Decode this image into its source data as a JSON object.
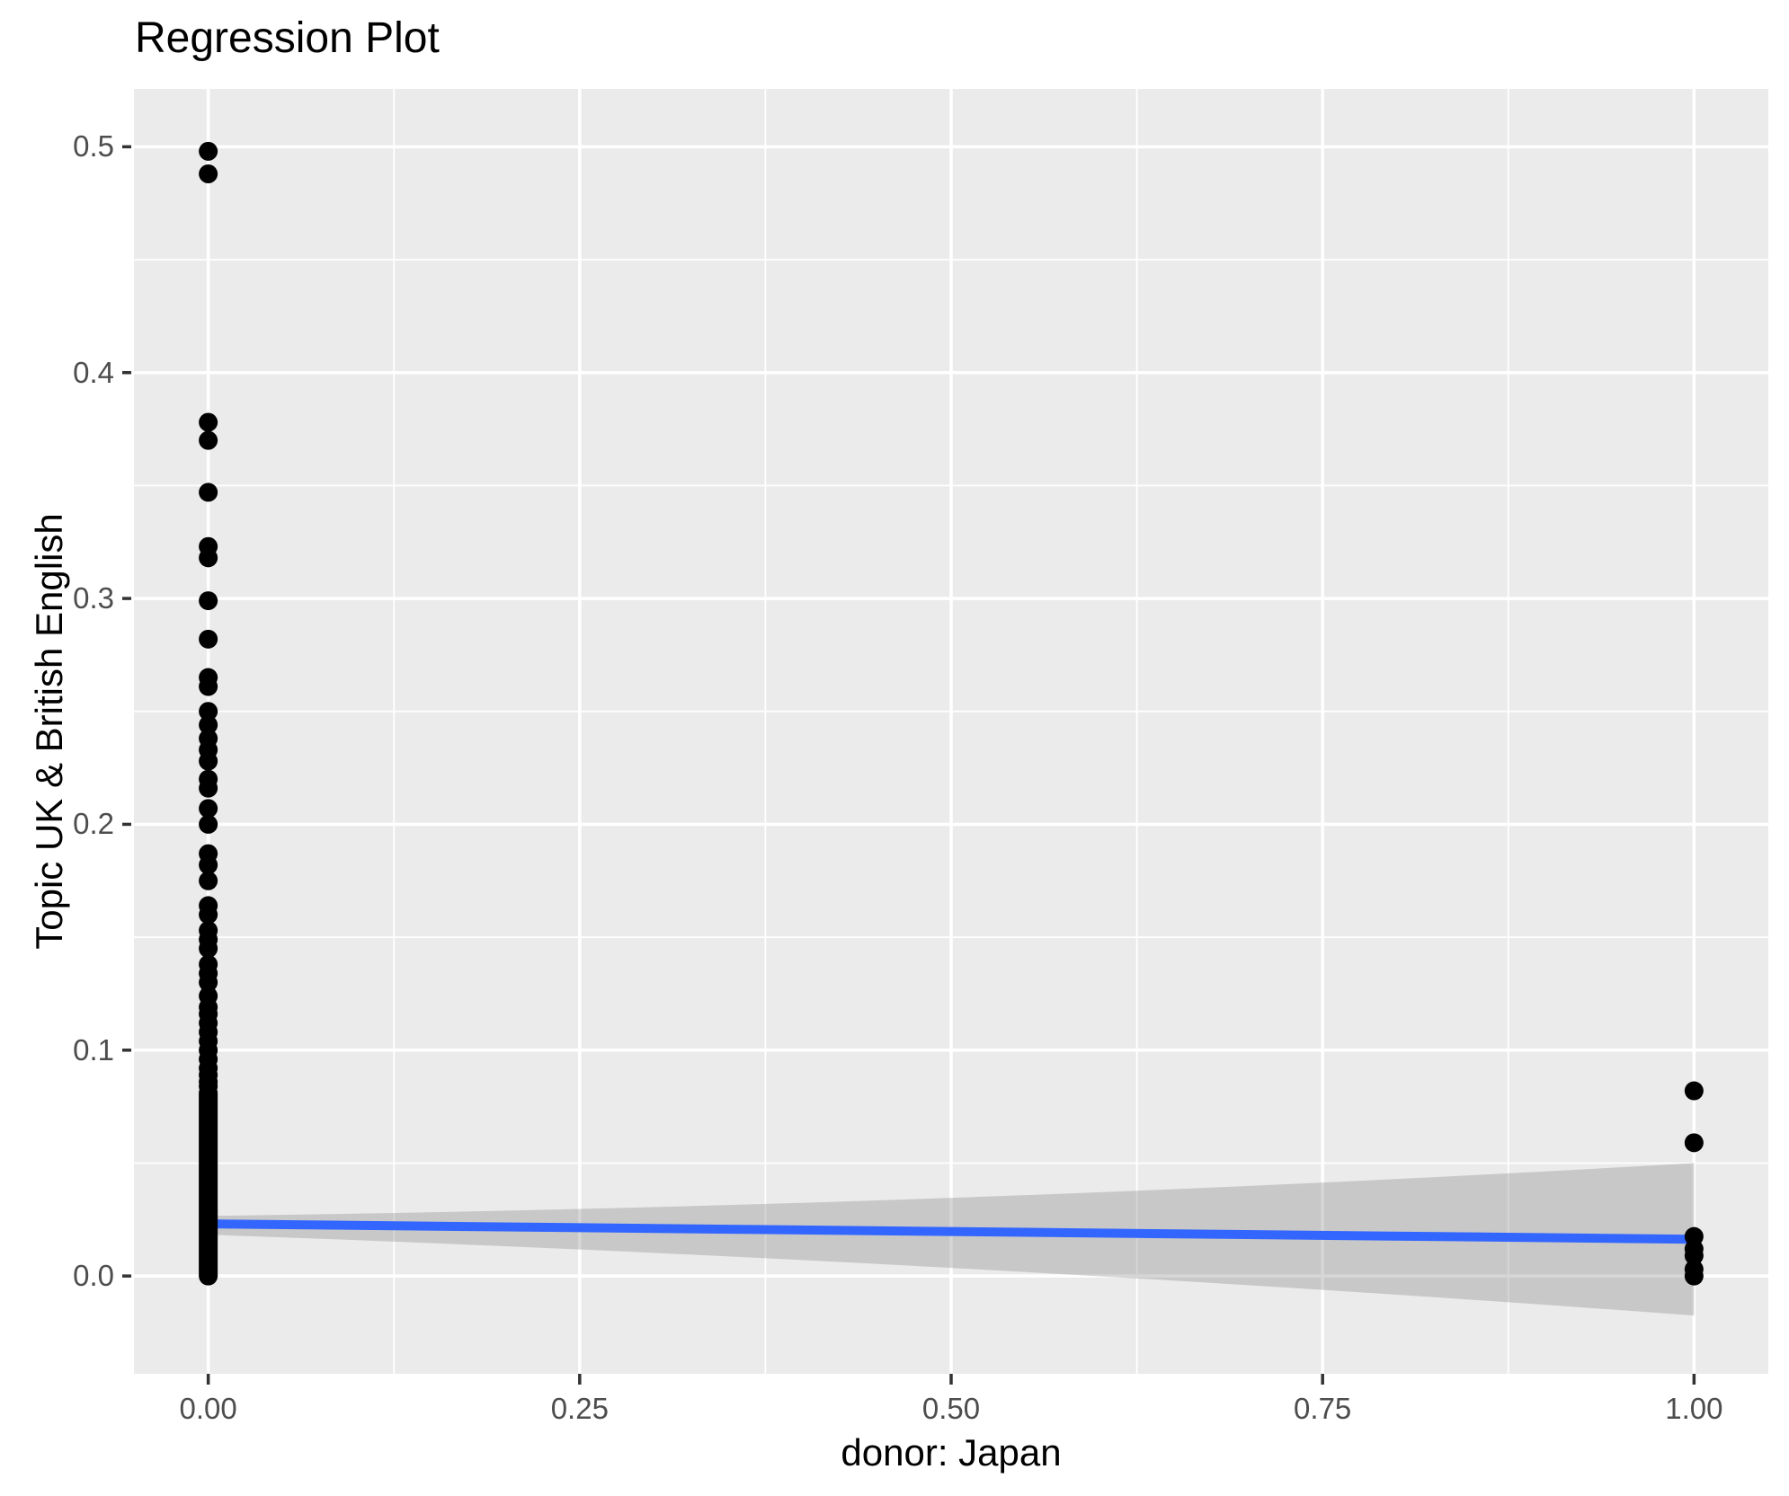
{
  "title": "Regression Plot",
  "chart_data": {
    "type": "scatter",
    "title": "Regression Plot",
    "xlabel": "donor: Japan",
    "ylabel": "Topic UK & British English",
    "legend": "none",
    "theme": "ggplot-grey",
    "grid": {
      "major": true,
      "minor": true,
      "x_minor_values": [
        0.125,
        0.375,
        0.625,
        0.875
      ],
      "y_minor_values": [
        0.05,
        0.15,
        0.25,
        0.35,
        0.45
      ]
    },
    "x_ticks": [
      {
        "value": 0.0,
        "label": "0.00"
      },
      {
        "value": 0.25,
        "label": "0.25"
      },
      {
        "value": 0.5,
        "label": "0.50"
      },
      {
        "value": 0.75,
        "label": "0.75"
      },
      {
        "value": 1.0,
        "label": "1.00"
      }
    ],
    "y_ticks": [
      {
        "value": 0.0,
        "label": "0.0"
      },
      {
        "value": 0.1,
        "label": "0.1"
      },
      {
        "value": 0.2,
        "label": "0.2"
      },
      {
        "value": 0.3,
        "label": "0.3"
      },
      {
        "value": 0.4,
        "label": "0.4"
      },
      {
        "value": 0.5,
        "label": "0.5"
      }
    ],
    "xlim": [
      -0.05,
      1.05
    ],
    "ylim": [
      -0.0433,
      0.5256
    ],
    "points_x0": [
      0.498,
      0.488,
      0.378,
      0.37,
      0.347,
      0.323,
      0.318,
      0.299,
      0.282,
      0.265,
      0.261,
      0.25,
      0.244,
      0.238,
      0.233,
      0.228,
      0.22,
      0.216,
      0.207,
      0.2,
      0.187,
      0.182,
      0.175,
      0.164,
      0.16,
      0.153,
      0.149,
      0.145,
      0.138,
      0.134,
      0.13,
      0.124,
      0.119,
      0.116,
      0.112,
      0.108,
      0.104,
      0.1,
      0.096,
      0.092,
      0.089,
      0.086,
      0.084
    ],
    "points_x1": [
      0.082,
      0.059,
      0.0175,
      0.012,
      0.009,
      0.003,
      0.0
    ],
    "dense_column": {
      "x": 0,
      "y_min": 0.0,
      "y_max": 0.081
    },
    "smooth": {
      "x": [
        0,
        1
      ],
      "y": [
        0.0231,
        0.0163
      ]
    },
    "ribbon": {
      "top": [
        [
          0,
          0.0266
        ],
        [
          0.5,
          0.0346
        ],
        [
          1.0,
          0.05
        ]
      ],
      "bottom": [
        [
          0,
          0.0183
        ],
        [
          0.5,
          0.0036
        ],
        [
          1.0,
          -0.0175
        ]
      ]
    },
    "colors": {
      "panel_background": "#EBEBEB",
      "gridline": "#FFFFFF",
      "point": "#000000",
      "smooth_line": "#3366FF",
      "ribbon_fill": "rgba(127,127,127,0.32)",
      "tick_mark": "#333333",
      "tick_label": "#4D4D4D",
      "title_text": "#000000"
    },
    "point_radius": 10.5
  }
}
